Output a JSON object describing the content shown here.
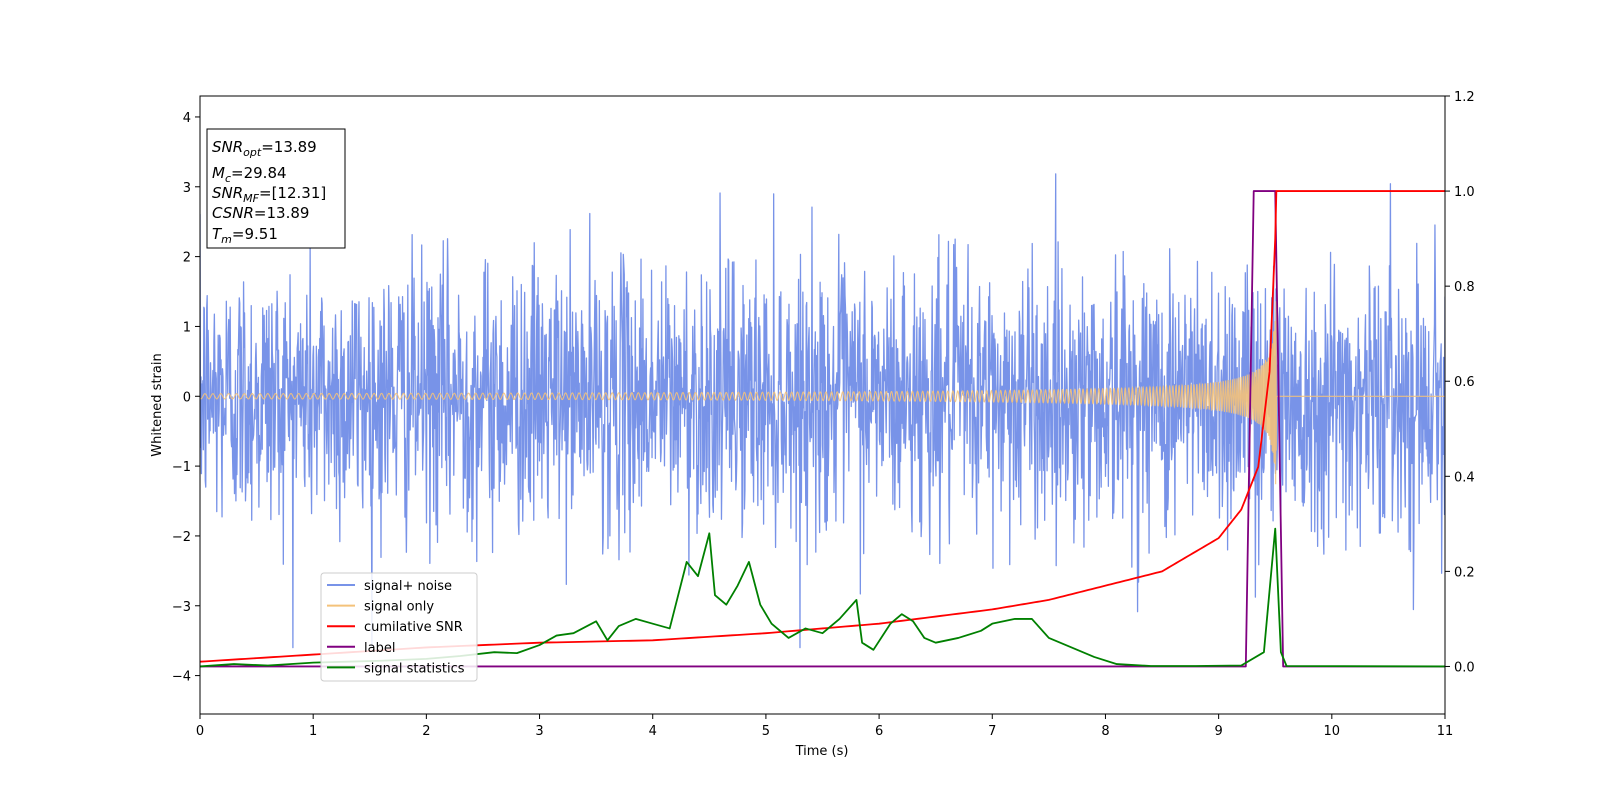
{
  "chart_data": {
    "type": "line",
    "xlabel": "Time (s)",
    "ylabel": "Whitened strain",
    "xlim": [
      0,
      11
    ],
    "ylim_left": [
      -4.55,
      4.3
    ],
    "ylim_right": [
      -0.1,
      1.2
    ],
    "xticks": [
      0,
      1,
      2,
      3,
      4,
      5,
      6,
      7,
      8,
      9,
      10,
      11
    ],
    "yticks_left": [
      -4,
      -3,
      -2,
      -1,
      0,
      1,
      2,
      3,
      4
    ],
    "yticks_right": [
      0.0,
      0.2,
      0.4,
      0.6,
      0.8,
      1.0,
      1.2
    ],
    "xtick_labels": [
      "0",
      "1",
      "2",
      "3",
      "4",
      "5",
      "6",
      "7",
      "8",
      "9",
      "10",
      "11"
    ],
    "ytick_labels_left": [
      "−4",
      "−3",
      "−2",
      "−1",
      "0",
      "1",
      "2",
      "3",
      "4"
    ],
    "ytick_labels_right": [
      "0.0",
      "0.2",
      "0.4",
      "0.6",
      "0.8",
      "1.0",
      "1.2"
    ],
    "grid": false,
    "legend_position": "lower-left",
    "series": [
      {
        "name": "signal+ noise",
        "axis": "left",
        "color": "#7893e8",
        "kind": "noise",
        "description_values": {
          "std": 0.95,
          "peak_max": 3.92,
          "peak_min": -3.6
        }
      },
      {
        "name": "signal only",
        "axis": "left",
        "color": "#f4c27a",
        "kind": "chirp",
        "merger_time": 9.51,
        "peak_amplitude": 1.5
      },
      {
        "name": "cumilative SNR",
        "axis": "right",
        "color": "#ff0000",
        "x": [
          0,
          1,
          2,
          3,
          4,
          5,
          6,
          7,
          7.5,
          8,
          8.5,
          9,
          9.2,
          9.35,
          9.45,
          9.5,
          9.51,
          11
        ],
        "y": [
          0.01,
          0.025,
          0.04,
          0.05,
          0.055,
          0.07,
          0.09,
          0.12,
          0.14,
          0.17,
          0.2,
          0.27,
          0.33,
          0.42,
          0.62,
          0.9,
          1.0,
          1.0
        ]
      },
      {
        "name": "label",
        "axis": "right",
        "color": "#800080",
        "x": [
          0,
          9.24,
          9.31,
          9.5,
          9.57,
          11
        ],
        "y": [
          0.0,
          0.0,
          1.0,
          1.0,
          0.0,
          0.0
        ]
      },
      {
        "name": "signal statistics",
        "axis": "right",
        "color": "#008000",
        "x": [
          0,
          0.3,
          0.6,
          1.0,
          1.3,
          1.6,
          2.0,
          2.3,
          2.6,
          2.8,
          3.0,
          3.15,
          3.3,
          3.5,
          3.6,
          3.7,
          3.85,
          4.0,
          4.15,
          4.3,
          4.4,
          4.5,
          4.55,
          4.65,
          4.75,
          4.85,
          4.95,
          5.05,
          5.2,
          5.35,
          5.5,
          5.65,
          5.8,
          5.85,
          5.95,
          6.1,
          6.2,
          6.3,
          6.4,
          6.5,
          6.7,
          6.9,
          7.0,
          7.2,
          7.35,
          7.5,
          7.7,
          7.9,
          8.1,
          8.4,
          8.8,
          9.2,
          9.4,
          9.5,
          9.55,
          9.6,
          11
        ],
        "y": [
          0.0,
          0.005,
          0.002,
          0.008,
          0.01,
          0.012,
          0.016,
          0.022,
          0.03,
          0.028,
          0.045,
          0.065,
          0.07,
          0.095,
          0.055,
          0.085,
          0.1,
          0.09,
          0.08,
          0.22,
          0.19,
          0.28,
          0.15,
          0.13,
          0.17,
          0.22,
          0.13,
          0.09,
          0.06,
          0.08,
          0.07,
          0.1,
          0.14,
          0.05,
          0.035,
          0.09,
          0.11,
          0.095,
          0.06,
          0.05,
          0.06,
          0.075,
          0.09,
          0.1,
          0.1,
          0.06,
          0.04,
          0.02,
          0.005,
          0.001,
          0.001,
          0.002,
          0.03,
          0.29,
          0.03,
          0.001,
          0.0
        ]
      }
    ],
    "info_box": {
      "snr_opt": {
        "label": "SNR",
        "sub": "opt",
        "value": "=13.89"
      },
      "mc": {
        "label": "M",
        "sub": "c",
        "value": "=29.84"
      },
      "snr_mf": {
        "label": "SNR",
        "sub": "MF",
        "value": "=[12.31]"
      },
      "csnr": {
        "label": "CSNR",
        "sub": "",
        "value": "=13.89"
      },
      "tm": {
        "label": "T",
        "sub": "m",
        "value": "=9.51"
      }
    }
  }
}
